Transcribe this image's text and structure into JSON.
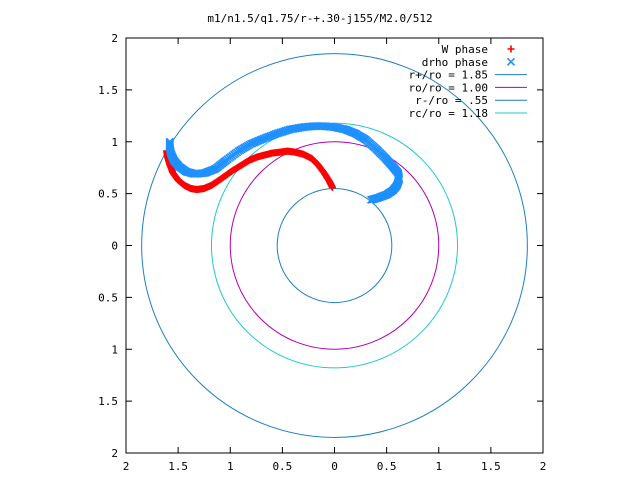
{
  "chart_data": {
    "type": "scatter",
    "title": "m1/n1.5/q1.75/r-+.30-j155/M2.0/512",
    "xlabel": "",
    "ylabel": "",
    "xlim": [
      2,
      -2
    ],
    "ylim": [
      -2,
      2
    ],
    "x_tick_values": [
      2,
      1.5,
      1,
      0.5,
      0,
      -0.5,
      -1,
      -1.5,
      -2
    ],
    "x_tick_labels": [
      "2",
      "1.5",
      "1",
      "0.5",
      "0",
      "0.5",
      "1",
      "1.5",
      "2"
    ],
    "y_tick_values": [
      2,
      1.5,
      1,
      0.5,
      0,
      -0.5,
      -1,
      -1.5,
      -2
    ],
    "y_tick_labels": [
      "2",
      "1.5",
      "1",
      "0.5",
      "0",
      "0.5",
      "1",
      "1.5",
      "2"
    ],
    "grid": false,
    "legend_position": "top-right",
    "series": [
      {
        "name": "W phase",
        "kind": "points",
        "marker": "plus",
        "color": "#ff0000",
        "points": [
          [
            0.02,
            0.56
          ],
          [
            0.05,
            0.62
          ],
          [
            0.1,
            0.7
          ],
          [
            0.16,
            0.78
          ],
          [
            0.22,
            0.84
          ],
          [
            0.3,
            0.88
          ],
          [
            0.38,
            0.9
          ],
          [
            0.45,
            0.91
          ],
          [
            0.52,
            0.9
          ],
          [
            0.6,
            0.89
          ],
          [
            0.68,
            0.87
          ],
          [
            0.75,
            0.85
          ],
          [
            0.82,
            0.82
          ],
          [
            0.9,
            0.77
          ],
          [
            0.98,
            0.72
          ],
          [
            1.05,
            0.67
          ],
          [
            1.12,
            0.62
          ],
          [
            1.18,
            0.58
          ],
          [
            1.25,
            0.55
          ],
          [
            1.32,
            0.54
          ],
          [
            1.38,
            0.55
          ],
          [
            1.44,
            0.58
          ],
          [
            1.5,
            0.63
          ],
          [
            1.55,
            0.7
          ],
          [
            1.58,
            0.78
          ],
          [
            1.6,
            0.85
          ],
          [
            1.61,
            0.91
          ]
        ]
      },
      {
        "name": "drho phase",
        "kind": "points",
        "marker": "cross",
        "color": "#1e90ff",
        "points": [
          [
            -0.35,
            0.44
          ],
          [
            -0.42,
            0.46
          ],
          [
            -0.5,
            0.49
          ],
          [
            -0.56,
            0.53
          ],
          [
            -0.6,
            0.58
          ],
          [
            -0.62,
            0.64
          ],
          [
            -0.61,
            0.7
          ],
          [
            -0.56,
            0.76
          ],
          [
            -0.49,
            0.84
          ],
          [
            -0.4,
            0.93
          ],
          [
            -0.3,
            1.02
          ],
          [
            -0.2,
            1.08
          ],
          [
            -0.1,
            1.12
          ],
          [
            0.0,
            1.14
          ],
          [
            0.1,
            1.15
          ],
          [
            0.2,
            1.15
          ],
          [
            0.3,
            1.14
          ],
          [
            0.42,
            1.12
          ],
          [
            0.55,
            1.08
          ],
          [
            0.68,
            1.03
          ],
          [
            0.8,
            0.98
          ],
          [
            0.92,
            0.91
          ],
          [
            1.04,
            0.82
          ],
          [
            1.14,
            0.74
          ],
          [
            1.24,
            0.7
          ],
          [
            1.34,
            0.69
          ],
          [
            1.42,
            0.71
          ],
          [
            1.49,
            0.76
          ],
          [
            1.54,
            0.82
          ],
          [
            1.57,
            0.89
          ],
          [
            1.58,
            0.95
          ],
          [
            1.58,
            1.0
          ]
        ]
      },
      {
        "name": "r+/ro = 1.85",
        "kind": "circle",
        "radius": 1.85,
        "color": "#1f7fc0"
      },
      {
        "name": "ro/ro = 1.00",
        "kind": "circle",
        "radius": 1.0,
        "color": "#b000b0"
      },
      {
        "name": "r-/ro = .55",
        "kind": "circle",
        "radius": 0.55,
        "color": "#1f7fc0"
      },
      {
        "name": "rc/ro = 1.18",
        "kind": "circle",
        "radius": 1.18,
        "color": "#20c8c8"
      }
    ]
  }
}
